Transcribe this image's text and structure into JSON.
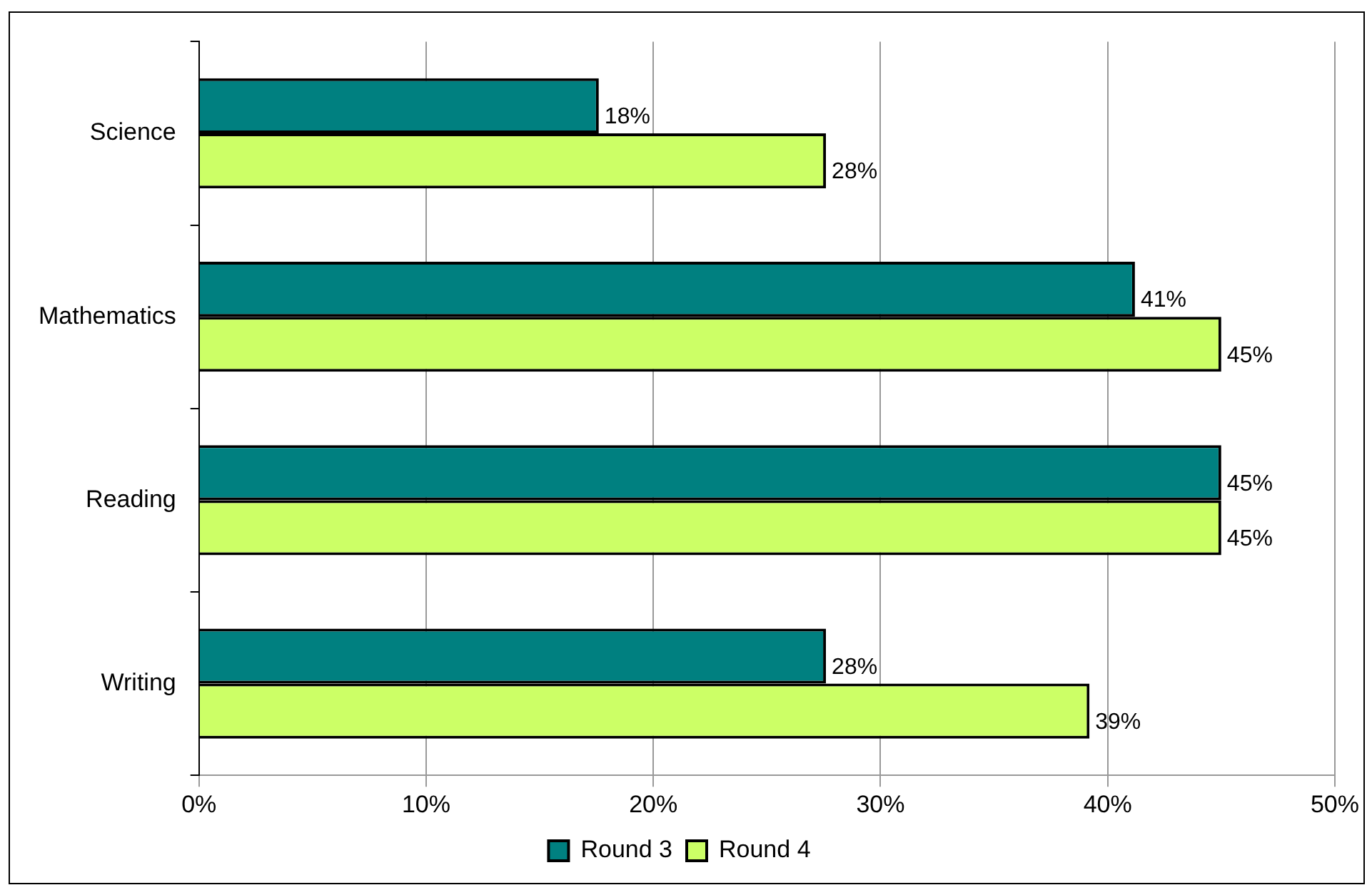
{
  "chart_data": {
    "type": "bar",
    "orientation": "horizontal",
    "categories": [
      "Science",
      "Mathematics",
      "Reading",
      "Writing"
    ],
    "series": [
      {
        "name": "Round 3",
        "color": "#008080",
        "values": [
          17.6,
          41.2,
          45,
          27.6
        ],
        "value_labels": [
          "18%",
          "41%",
          "45%",
          "28%"
        ]
      },
      {
        "name": "Round 4",
        "color": "#ccff66",
        "values": [
          27.6,
          45,
          45,
          39.2
        ],
        "value_labels": [
          "28%",
          "45%",
          "45%",
          "39%"
        ]
      }
    ],
    "xlim": [
      0,
      50
    ],
    "xticks": [
      {
        "value": 0,
        "label": "0%"
      },
      {
        "value": 10,
        "label": "10%"
      },
      {
        "value": 20,
        "label": "20%"
      },
      {
        "value": 30,
        "label": "30%"
      },
      {
        "value": 40,
        "label": "40%"
      },
      {
        "value": 50,
        "label": "50%"
      }
    ],
    "grid": "x",
    "legend": "bottom"
  }
}
